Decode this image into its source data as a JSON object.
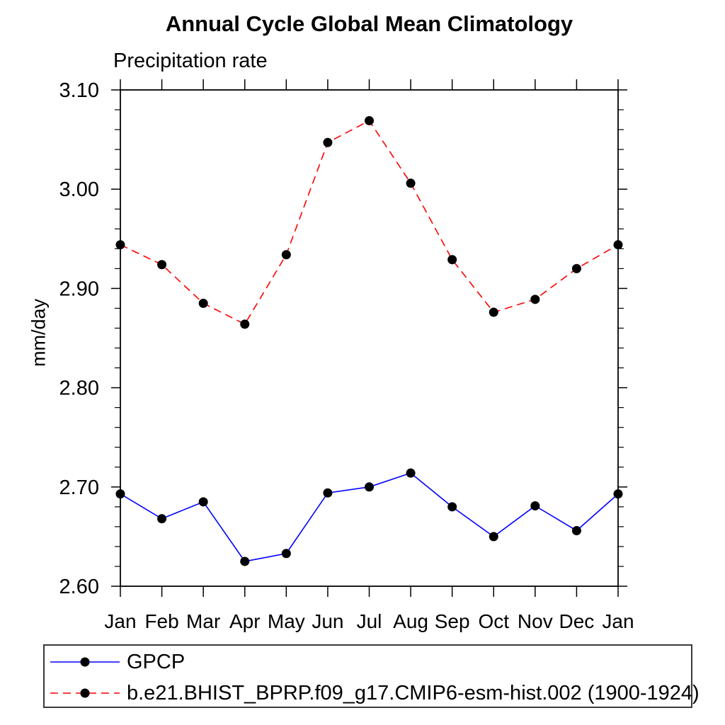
{
  "chart_data": {
    "type": "line",
    "title": "Annual Cycle Global Mean Climatology",
    "subtitle": "Precipitation rate",
    "ylabel": "mm/day",
    "x_categories": [
      "Jan",
      "Feb",
      "Mar",
      "Apr",
      "May",
      "Jun",
      "Jul",
      "Aug",
      "Sep",
      "Oct",
      "Nov",
      "Dec",
      "Jan"
    ],
    "ylim": [
      2.6,
      3.1
    ],
    "y_major_ticks": [
      2.6,
      2.7,
      2.8,
      2.9,
      3.0,
      3.1
    ],
    "y_major_labels": [
      "2.60",
      "2.70",
      "2.80",
      "2.90",
      "3.00",
      "3.10"
    ],
    "y_minor_step": 0.02,
    "grid": false,
    "legend_position": "bottom-left-box",
    "axis_color": "#000000",
    "marker_color": "#000000",
    "series": [
      {
        "id": "gpcp",
        "name": "GPCP",
        "color": "#0000ff",
        "dash": "solid",
        "values": [
          2.693,
          2.668,
          2.685,
          2.625,
          2.633,
          2.694,
          2.7,
          2.714,
          2.68,
          2.65,
          2.681,
          2.656,
          2.693
        ]
      },
      {
        "id": "model",
        "name": "b.e21.BHIST_BPRP.f09_g17.CMIP6-esm-hist.002 (1900-1924)",
        "color": "#ff0000",
        "dash": "dashed",
        "values": [
          2.944,
          2.924,
          2.885,
          2.864,
          2.934,
          3.047,
          3.069,
          3.006,
          2.929,
          2.876,
          2.889,
          2.92,
          2.944
        ]
      }
    ]
  }
}
